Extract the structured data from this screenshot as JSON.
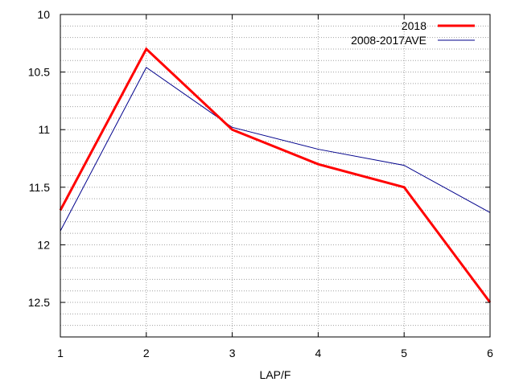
{
  "chart_data": {
    "type": "line",
    "xlabel": "LAP/F",
    "ylabel": "",
    "x": [
      1,
      2,
      3,
      4,
      5,
      6
    ],
    "xticks": [
      "1",
      "2",
      "3",
      "4",
      "5",
      "6"
    ],
    "xlim": [
      1,
      6
    ],
    "ylim": [
      10,
      12.8
    ],
    "y_inverted": true,
    "yticks": [
      "10",
      "10.5",
      "11",
      "11.5",
      "12",
      "12.5"
    ],
    "ytick_values": [
      10,
      10.5,
      11,
      11.5,
      12,
      12.5
    ],
    "y_minor_step": 0.1,
    "grid": true,
    "legend_position": "top-right",
    "series": [
      {
        "name": "2018",
        "color": "#ff0000",
        "values": [
          11.7,
          10.3,
          11.0,
          11.3,
          11.5,
          12.5
        ]
      },
      {
        "name": "2008-2017AVE",
        "color": "#00008b",
        "values": [
          11.88,
          10.46,
          10.98,
          11.17,
          11.31,
          11.72
        ]
      }
    ]
  }
}
